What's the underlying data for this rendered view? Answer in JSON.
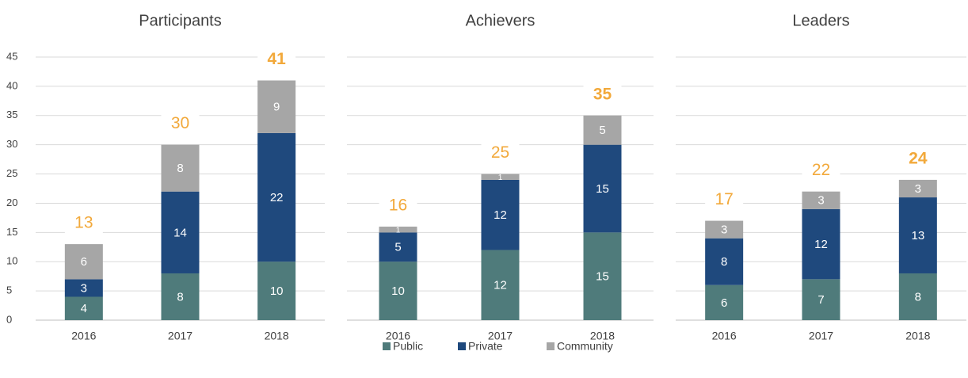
{
  "chart_data": [
    {
      "type": "bar",
      "stacked": true,
      "title": "Participants",
      "categories": [
        "2016",
        "2017",
        "2018"
      ],
      "series": [
        {
          "name": "Public",
          "color": "#4f7b7b",
          "values": [
            4,
            8,
            10
          ]
        },
        {
          "name": "Private",
          "color": "#1f497d",
          "values": [
            3,
            14,
            22
          ]
        },
        {
          "name": "Community",
          "color": "#a6a6a6",
          "values": [
            6,
            8,
            9
          ]
        }
      ],
      "totals": [
        13,
        30,
        41
      ],
      "totals_color": "#f2a93b",
      "ylim": [
        0,
        45
      ],
      "yticks": [
        0,
        5,
        10,
        15,
        20,
        25,
        30,
        35,
        40,
        45
      ],
      "grid": true,
      "show_yticks": true
    },
    {
      "type": "bar",
      "stacked": true,
      "title": "Achievers",
      "categories": [
        "2016",
        "2017",
        "2018"
      ],
      "series": [
        {
          "name": "Public",
          "color": "#4f7b7b",
          "values": [
            10,
            12,
            15
          ]
        },
        {
          "name": "Private",
          "color": "#1f497d",
          "values": [
            5,
            12,
            15
          ]
        },
        {
          "name": "Community",
          "color": "#a6a6a6",
          "values": [
            1,
            1,
            5
          ]
        }
      ],
      "totals": [
        16,
        25,
        35
      ],
      "totals_color": "#f2a93b",
      "ylim": [
        0,
        45
      ],
      "yticks": [
        0,
        5,
        10,
        15,
        20,
        25,
        30,
        35,
        40,
        45
      ],
      "grid": true,
      "show_yticks": false
    },
    {
      "type": "bar",
      "stacked": true,
      "title": "Leaders",
      "categories": [
        "2016",
        "2017",
        "2018"
      ],
      "series": [
        {
          "name": "Public",
          "color": "#4f7b7b",
          "values": [
            6,
            7,
            8
          ]
        },
        {
          "name": "Private",
          "color": "#1f497d",
          "values": [
            8,
            12,
            13
          ]
        },
        {
          "name": "Community",
          "color": "#a6a6a6",
          "values": [
            3,
            3,
            3
          ]
        }
      ],
      "totals": [
        17,
        22,
        24
      ],
      "totals_color": "#f2a93b",
      "ylim": [
        0,
        45
      ],
      "yticks": [
        0,
        5,
        10,
        15,
        20,
        25,
        30,
        35,
        40,
        45
      ],
      "grid": true,
      "show_yticks": false
    }
  ]
}
